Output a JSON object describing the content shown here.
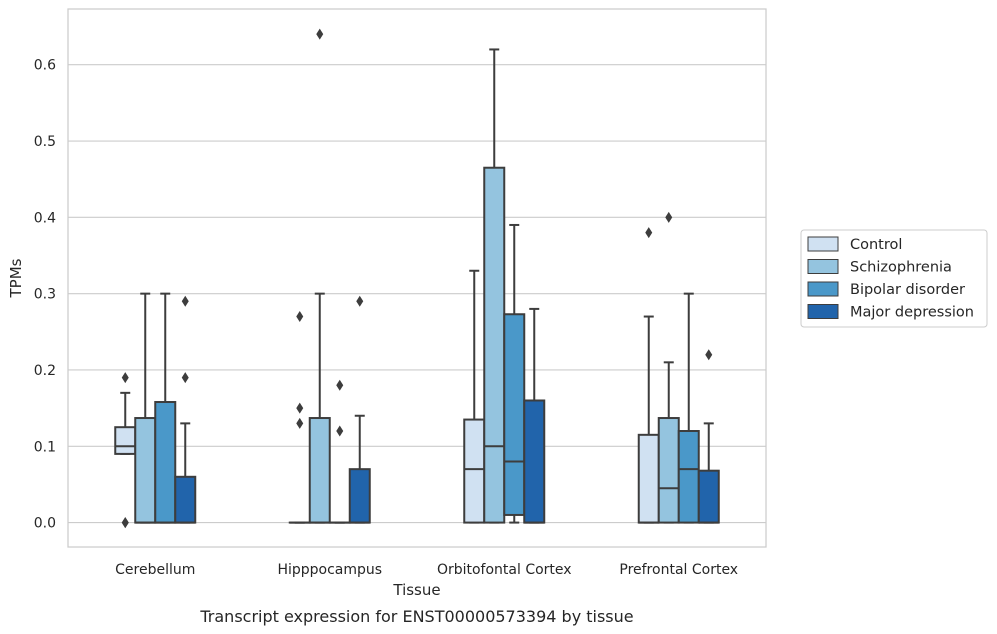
{
  "chart_data": {
    "type": "box",
    "caption": "Transcript expression for ENST00000573394 by tissue",
    "xlabel": "Tissue",
    "ylabel": "TPMs",
    "ylim": [
      -0.032,
      0.673
    ],
    "yticks": [
      {
        "value": 0.0,
        "label": "0.0"
      },
      {
        "value": 0.1,
        "label": "0.1"
      },
      {
        "value": 0.2,
        "label": "0.2"
      },
      {
        "value": 0.3,
        "label": "0.3"
      },
      {
        "value": 0.4,
        "label": "0.4"
      },
      {
        "value": 0.5,
        "label": "0.5"
      },
      {
        "value": 0.6,
        "label": "0.6"
      }
    ],
    "grid": "horizontal",
    "legend_position": "right",
    "categories": [
      "Cerebellum",
      "Hipppocampus",
      "Orbitofontal Cortex",
      "Prefrontal Cortex"
    ],
    "series": [
      {
        "name": "Control",
        "color": "#d0e1f2",
        "boxes": [
          {
            "q1": 0.09,
            "median": 0.1,
            "q3": 0.125,
            "whisker_low": 0.09,
            "whisker_high": 0.17,
            "outliers": [
              0.19,
              0.0,
              0.0
            ]
          },
          {
            "q1": 0.0,
            "median": 0.0,
            "q3": 0.0,
            "whisker_low": 0.0,
            "whisker_high": 0.0,
            "outliers": [
              0.27,
              0.15,
              0.13
            ]
          },
          {
            "q1": 0.0,
            "median": 0.07,
            "q3": 0.135,
            "whisker_low": 0.0,
            "whisker_high": 0.33,
            "outliers": []
          },
          {
            "q1": 0.0,
            "median": 0.0,
            "q3": 0.115,
            "whisker_low": 0.0,
            "whisker_high": 0.27,
            "outliers": [
              0.38
            ]
          }
        ]
      },
      {
        "name": "Schizophrenia",
        "color": "#94c4df",
        "boxes": [
          {
            "q1": 0.0,
            "median": 0.0,
            "q3": 0.137,
            "whisker_low": 0.0,
            "whisker_high": 0.3,
            "outliers": []
          },
          {
            "q1": 0.0,
            "median": 0.0,
            "q3": 0.137,
            "whisker_low": 0.0,
            "whisker_high": 0.3,
            "outliers": [
              0.64
            ]
          },
          {
            "q1": 0.0,
            "median": 0.1,
            "q3": 0.465,
            "whisker_low": 0.0,
            "whisker_high": 0.62,
            "outliers": []
          },
          {
            "q1": 0.0,
            "median": 0.045,
            "q3": 0.137,
            "whisker_low": 0.0,
            "whisker_high": 0.21,
            "outliers": [
              0.4
            ]
          }
        ]
      },
      {
        "name": "Bipolar disorder",
        "color": "#4a98c9",
        "boxes": [
          {
            "q1": 0.0,
            "median": 0.0,
            "q3": 0.158,
            "whisker_low": 0.0,
            "whisker_high": 0.3,
            "outliers": []
          },
          {
            "q1": 0.0,
            "median": 0.0,
            "q3": 0.0,
            "whisker_low": 0.0,
            "whisker_high": 0.0,
            "outliers": [
              0.18,
              0.12
            ]
          },
          {
            "q1": 0.01,
            "median": 0.08,
            "q3": 0.273,
            "whisker_low": 0.0,
            "whisker_high": 0.39,
            "outliers": []
          },
          {
            "q1": 0.0,
            "median": 0.07,
            "q3": 0.12,
            "whisker_low": 0.0,
            "whisker_high": 0.3,
            "outliers": []
          }
        ]
      },
      {
        "name": "Major depression",
        "color": "#2164ab",
        "boxes": [
          {
            "q1": 0.0,
            "median": 0.0,
            "q3": 0.06,
            "whisker_low": 0.0,
            "whisker_high": 0.13,
            "outliers": [
              0.29,
              0.19
            ]
          },
          {
            "q1": 0.0,
            "median": 0.0,
            "q3": 0.07,
            "whisker_low": 0.0,
            "whisker_high": 0.14,
            "outliers": [
              0.29
            ]
          },
          {
            "q1": 0.0,
            "median": 0.0,
            "q3": 0.16,
            "whisker_low": 0.0,
            "whisker_high": 0.28,
            "outliers": []
          },
          {
            "q1": 0.0,
            "median": 0.0,
            "q3": 0.068,
            "whisker_low": 0.0,
            "whisker_high": 0.13,
            "outliers": [
              0.22
            ]
          }
        ]
      }
    ]
  }
}
